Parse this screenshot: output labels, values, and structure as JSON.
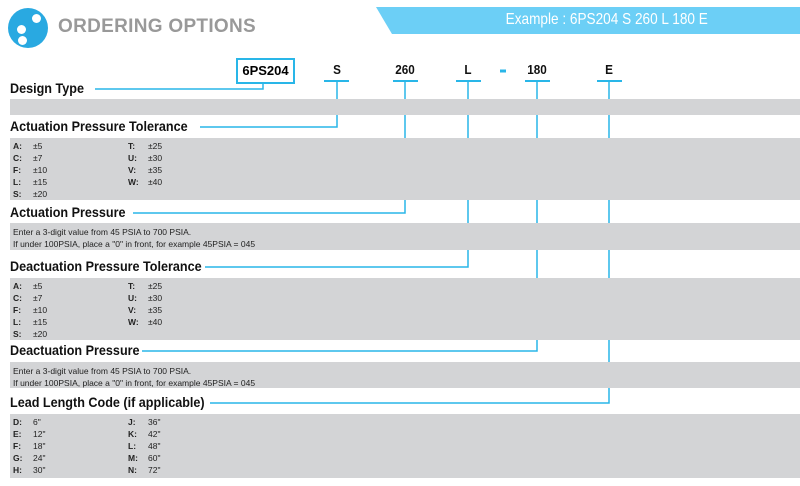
{
  "header": {
    "title": "ORDERING OPTIONS",
    "example": "Example : 6PS204 S 260 L 180 E"
  },
  "colors": {
    "accent": "#29abe2",
    "banner": "#6ccff6",
    "band": "#d3d4d6",
    "title": "#999999"
  },
  "codes": {
    "design": "6PS204",
    "act_tol": "S",
    "act_pressure": "260",
    "deact_tol": "L",
    "dash": "-",
    "deact_pressure": "180",
    "lead": "E"
  },
  "sections": {
    "design_type": {
      "heading": "Design Type"
    },
    "act_tol": {
      "heading": "Actuation Pressure Tolerance",
      "col1": [
        {
          "k": "A:",
          "v": "±5"
        },
        {
          "k": "C:",
          "v": "±7"
        },
        {
          "k": "F:",
          "v": "±10"
        },
        {
          "k": "L:",
          "v": "±15"
        },
        {
          "k": "S:",
          "v": "±20"
        }
      ],
      "col2": [
        {
          "k": "T:",
          "v": "±25"
        },
        {
          "k": "U:",
          "v": "±30"
        },
        {
          "k": "V:",
          "v": "±35"
        },
        {
          "k": "W:",
          "v": "±40"
        }
      ]
    },
    "act_pressure": {
      "heading": "Actuation Pressure",
      "line1": "Enter a 3-digit value from 45 PSIA to 700 PSIA.",
      "line2": "If under 100PSIA, place a \"0\" in front, for example 45PSIA = 045"
    },
    "deact_tol": {
      "heading": "Deactuation Pressure Tolerance",
      "col1": [
        {
          "k": "A:",
          "v": "±5"
        },
        {
          "k": "C:",
          "v": "±7"
        },
        {
          "k": "F:",
          "v": "±10"
        },
        {
          "k": "L:",
          "v": "±15"
        },
        {
          "k": "S:",
          "v": "±20"
        }
      ],
      "col2": [
        {
          "k": "T:",
          "v": "±25"
        },
        {
          "k": "U:",
          "v": "±30"
        },
        {
          "k": "V:",
          "v": "±35"
        },
        {
          "k": "W:",
          "v": "±40"
        }
      ]
    },
    "deact_pressure": {
      "heading": "Deactuation Pressure",
      "line1": "Enter a 3-digit value from 45 PSIA to 700 PSIA.",
      "line2": "If under 100PSIA, place a \"0\" in front, for example 45PSIA = 045"
    },
    "lead": {
      "heading": "Lead Length Code (if applicable)",
      "col1": [
        {
          "k": "D:",
          "v": "6\""
        },
        {
          "k": "E:",
          "v": "12\""
        },
        {
          "k": "F:",
          "v": "18\""
        },
        {
          "k": "G:",
          "v": "24\""
        },
        {
          "k": "H:",
          "v": "30\""
        }
      ],
      "col2": [
        {
          "k": "J:",
          "v": "36\""
        },
        {
          "k": "K:",
          "v": "42\""
        },
        {
          "k": "L:",
          "v": "48\""
        },
        {
          "k": "M:",
          "v": "60\""
        },
        {
          "k": "N:",
          "v": "72\""
        }
      ]
    }
  }
}
